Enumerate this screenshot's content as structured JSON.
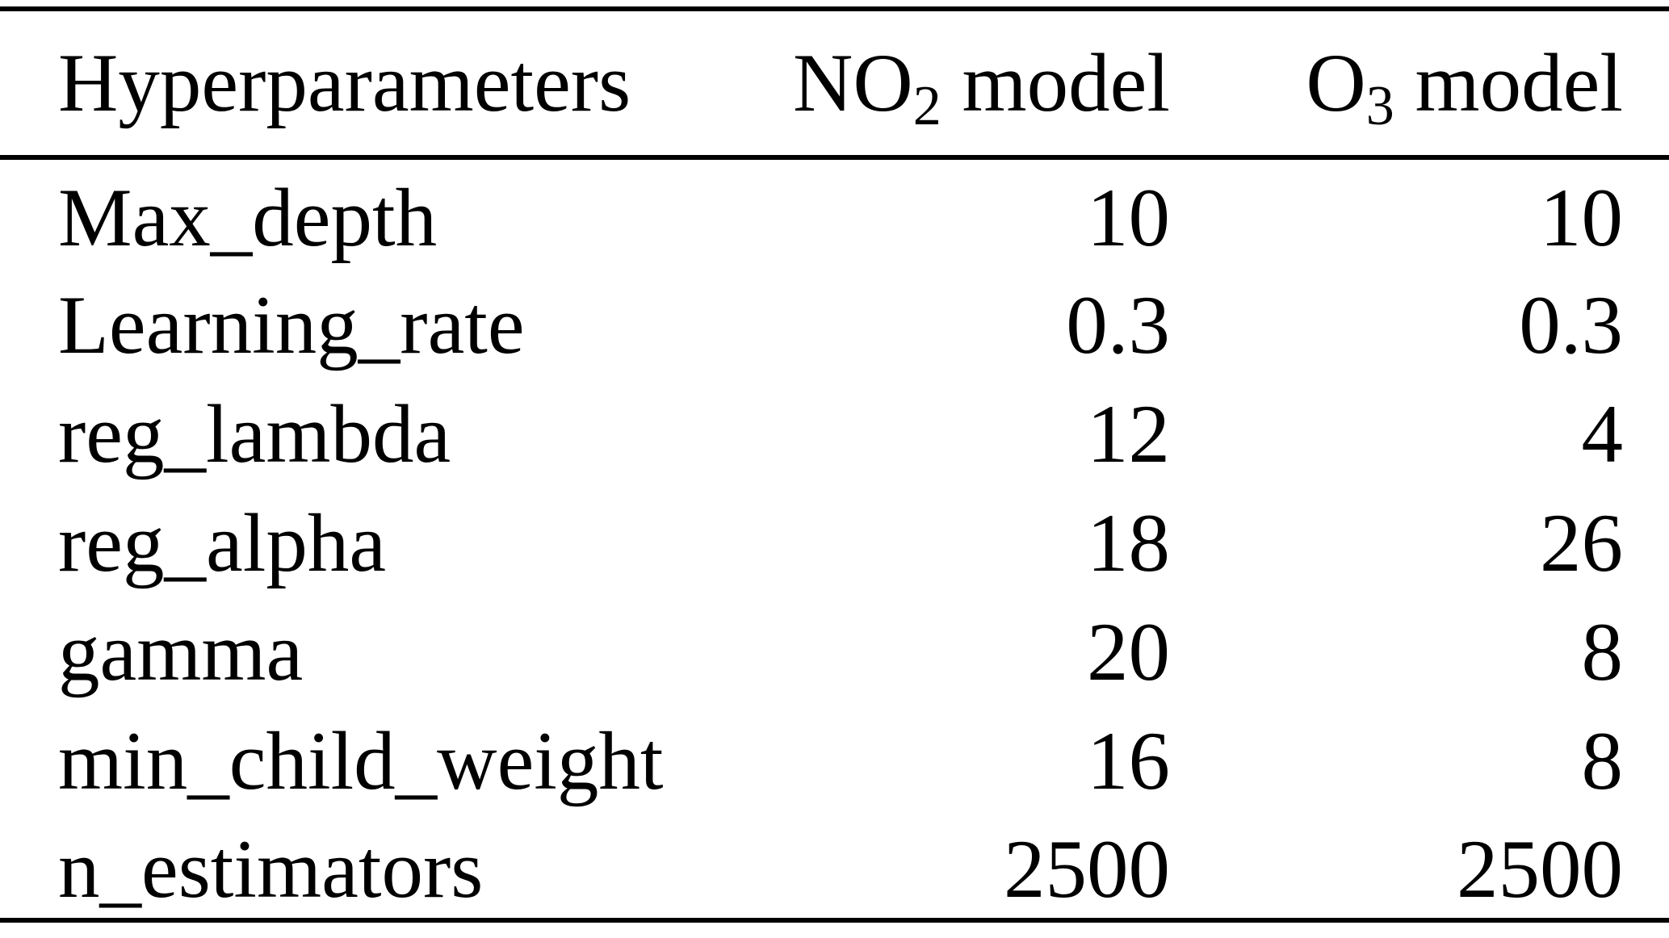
{
  "colors": {
    "background": "#ffffff",
    "text": "#000000",
    "rule": "#000000"
  },
  "table": {
    "header": {
      "col1": "Hyperparameters",
      "col2": {
        "prefix": "NO",
        "sub": "2",
        "suffix": " model"
      },
      "col3": {
        "prefix": "O",
        "sub": "3",
        "suffix": " model"
      }
    },
    "rows": [
      {
        "param": "Max_depth",
        "no2": "10",
        "o3": "10"
      },
      {
        "param": "Learning_rate",
        "no2": "0.3",
        "o3": "0.3"
      },
      {
        "param": "reg_lambda",
        "no2": "12",
        "o3": "4"
      },
      {
        "param": "reg_alpha",
        "no2": "18",
        "o3": "26"
      },
      {
        "param": "gamma",
        "no2": "20",
        "o3": "8"
      },
      {
        "param": "min_child_weight",
        "no2": "16",
        "o3": "8"
      },
      {
        "param": "n_estimators",
        "no2": "2500",
        "o3": "2500"
      }
    ]
  }
}
